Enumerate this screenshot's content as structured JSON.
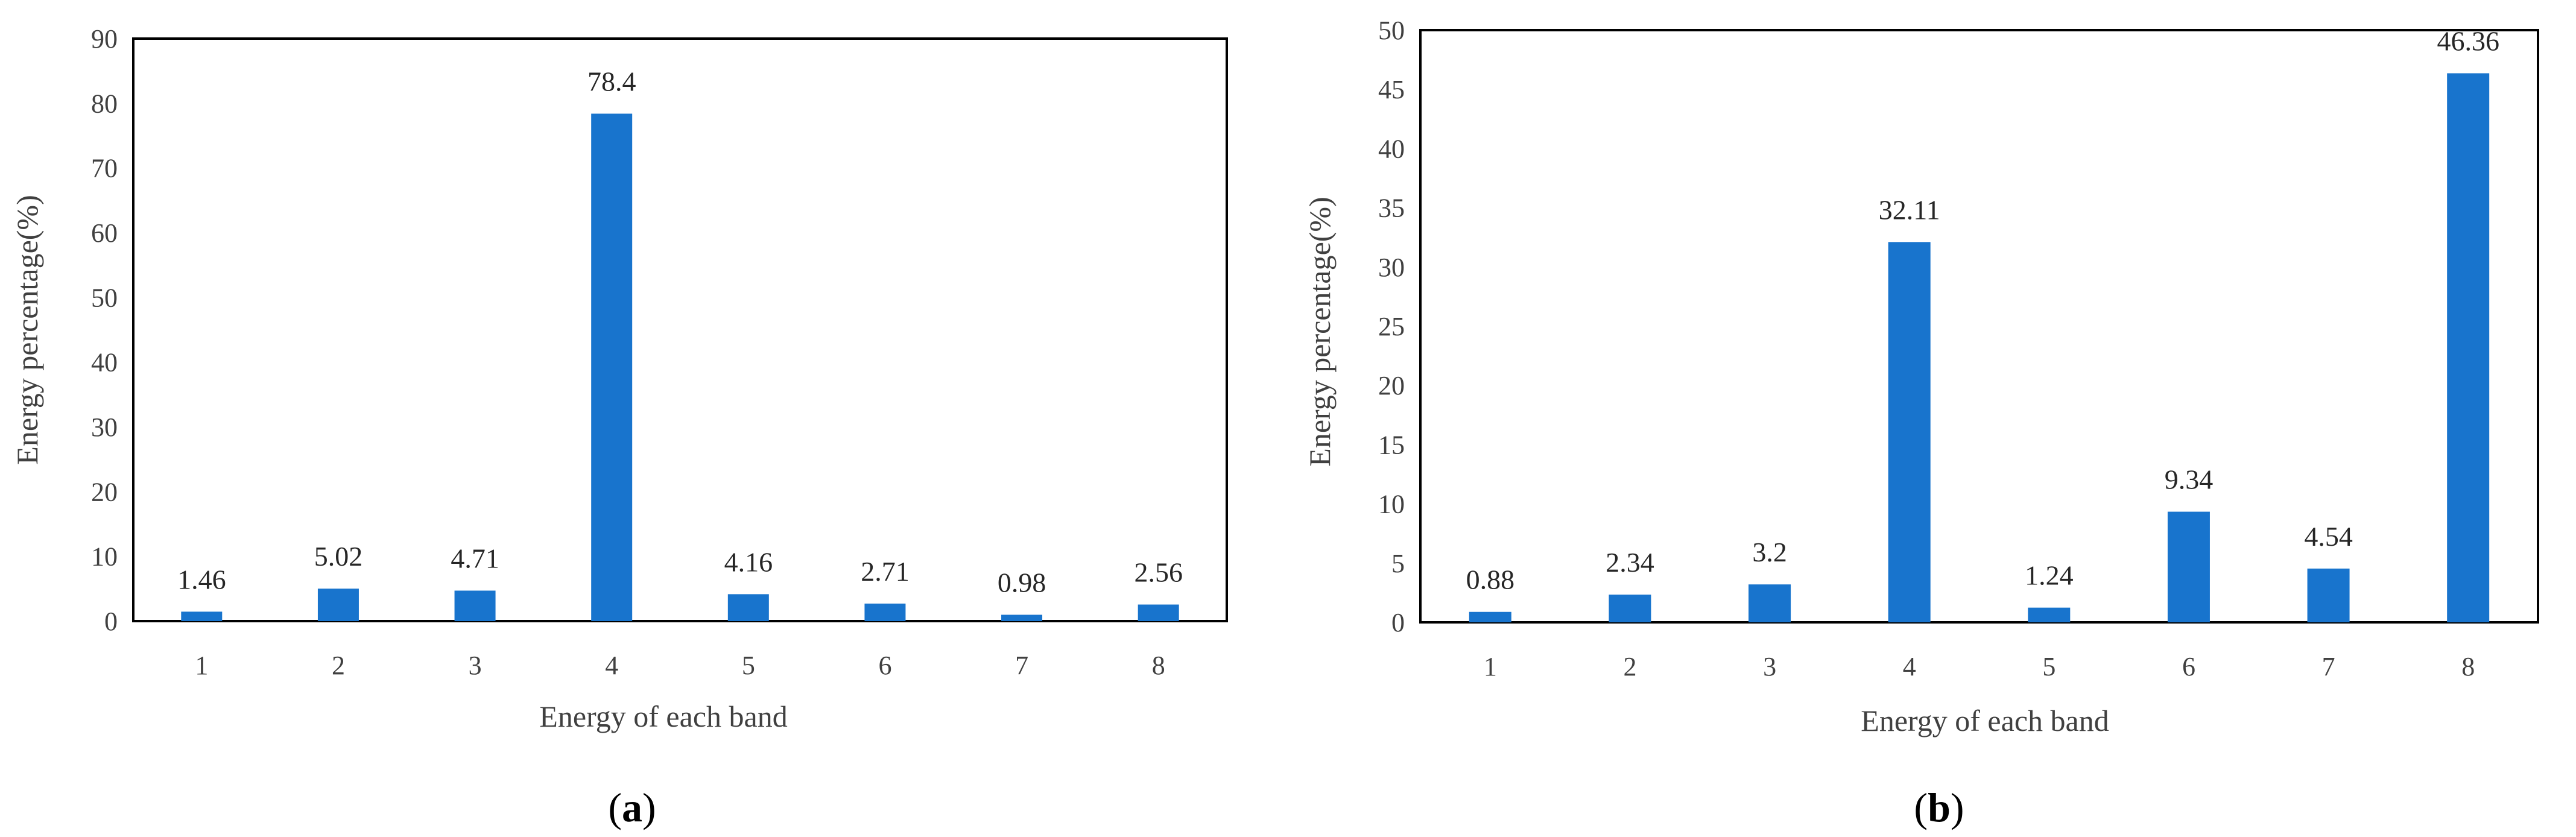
{
  "colors": {
    "bar": "#1874CD",
    "frame": "#000000"
  },
  "chart_data": [
    {
      "type": "bar",
      "panel_label": "a",
      "title": "",
      "xlabel": "Energy of each band",
      "ylabel": "Energy percentage(%)",
      "categories": [
        "1",
        "2",
        "3",
        "4",
        "5",
        "6",
        "7",
        "8"
      ],
      "values": [
        1.46,
        5.02,
        4.71,
        78.4,
        4.16,
        2.71,
        0.98,
        2.56
      ],
      "value_labels": [
        "1.46",
        "5.02",
        "4.71",
        "78.4",
        "4.16",
        "2.71",
        "0.98",
        "2.56"
      ],
      "ylim": [
        0,
        90
      ],
      "yticks": [
        "0",
        "10",
        "20",
        "30",
        "40",
        "50",
        "60",
        "70",
        "80",
        "90"
      ],
      "grid": false,
      "legend": "none"
    },
    {
      "type": "bar",
      "panel_label": "b",
      "title": "",
      "xlabel": "Energy of each band",
      "ylabel": "Energy percentage(%)",
      "categories": [
        "1",
        "2",
        "3",
        "4",
        "5",
        "6",
        "7",
        "8"
      ],
      "values": [
        0.88,
        2.34,
        3.2,
        32.11,
        1.24,
        9.34,
        4.54,
        46.36
      ],
      "value_labels": [
        "0.88",
        "2.34",
        "3.2",
        "32.11",
        "1.24",
        "9.34",
        "4.54",
        "46.36"
      ],
      "ylim": [
        0,
        50
      ],
      "yticks": [
        "0",
        "5",
        "10",
        "15",
        "20",
        "25",
        "30",
        "35",
        "40",
        "45",
        "50"
      ],
      "grid": false,
      "legend": "none"
    }
  ]
}
